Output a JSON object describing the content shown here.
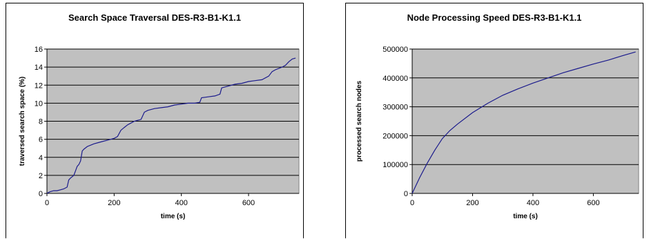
{
  "colors": {
    "plot_bg": "#c0c0c0",
    "series_line": "#1a1a8c",
    "gridline": "#000000"
  },
  "chart_data": [
    {
      "type": "line",
      "title": "Search Space Traversal DES-R3-B1-K1.1",
      "xlabel": "time (s)",
      "ylabel": "traversed search space (%)",
      "xlim": [
        0,
        750
      ],
      "ylim": [
        0,
        16
      ],
      "xticks": [
        "0",
        "200",
        "400",
        "600"
      ],
      "yticks": [
        "0",
        "2",
        "4",
        "6",
        "8",
        "10",
        "12",
        "14",
        "16"
      ],
      "grid": "horizontal",
      "series": [
        {
          "x": [
            0,
            5,
            10,
            20,
            30,
            40,
            50,
            60,
            65,
            70,
            80,
            85,
            90,
            95,
            100,
            105,
            110,
            120,
            140,
            160,
            180,
            200,
            210,
            220,
            230,
            240,
            255,
            260,
            270,
            280,
            290,
            300,
            320,
            340,
            360,
            380,
            400,
            420,
            440,
            455,
            460,
            480,
            500,
            515,
            520,
            540,
            560,
            580,
            600,
            620,
            640,
            660,
            670,
            680,
            700,
            710,
            720,
            730,
            740
          ],
          "y": [
            0,
            0.1,
            0.2,
            0.3,
            0.3,
            0.4,
            0.5,
            0.7,
            1.5,
            1.7,
            2.0,
            2.5,
            3.0,
            3.2,
            3.6,
            4.7,
            4.9,
            5.2,
            5.5,
            5.7,
            5.9,
            6.1,
            6.3,
            7.0,
            7.3,
            7.6,
            7.9,
            8.0,
            8.1,
            8.2,
            9.0,
            9.2,
            9.4,
            9.5,
            9.6,
            9.8,
            9.9,
            10.0,
            10.0,
            10.1,
            10.6,
            10.7,
            10.8,
            11.0,
            11.7,
            11.9,
            12.1,
            12.2,
            12.4,
            12.5,
            12.6,
            13.0,
            13.5,
            13.7,
            14.0,
            14.2,
            14.6,
            14.9,
            15.0
          ]
        }
      ]
    },
    {
      "type": "line",
      "title": "Node Processing Speed DES-R3-B1-K1.1",
      "xlabel": "time (s)",
      "ylabel": "processed search nodes",
      "xlim": [
        0,
        750
      ],
      "ylim": [
        0,
        500000
      ],
      "xticks": [
        "0",
        "200",
        "400",
        "600"
      ],
      "yticks": [
        "0",
        "100000",
        "200000",
        "300000",
        "400000",
        "500000"
      ],
      "grid": "horizontal",
      "series": [
        {
          "x": [
            0,
            25,
            50,
            75,
            100,
            125,
            150,
            200,
            250,
            300,
            350,
            400,
            450,
            500,
            550,
            600,
            650,
            700,
            740
          ],
          "y": [
            0,
            55000,
            105000,
            150000,
            190000,
            218000,
            240000,
            280000,
            312000,
            340000,
            362000,
            382000,
            400000,
            418000,
            433000,
            448000,
            462000,
            478000,
            490000
          ]
        }
      ]
    }
  ]
}
